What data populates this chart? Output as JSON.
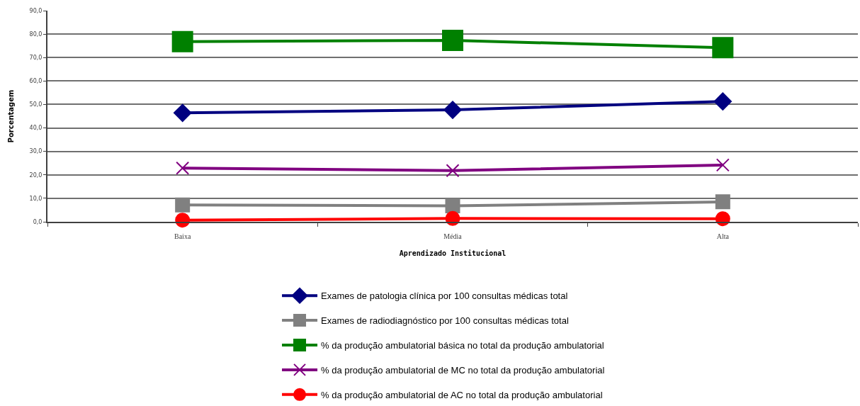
{
  "chart_data": {
    "type": "line",
    "xlabel": "Aprendizado Institucional",
    "ylabel": "Porcentagem",
    "categories": [
      "Baixa",
      "Média",
      "Alta"
    ],
    "series": [
      {
        "name": "Exames de patologia clínica por 100 consultas médicas total",
        "color": "#000080",
        "marker": "diamond",
        "values": [
          46.4,
          47.7,
          51.3
        ]
      },
      {
        "name": "Exames de radiodiagnóstico por 100 consultas médicas total",
        "color": "#808080",
        "marker": "square",
        "values": [
          7.2,
          6.8,
          8.5
        ]
      },
      {
        "name": "% da produção ambulatorial básica no total da produção ambulatorial",
        "color": "#008000",
        "marker": "square",
        "values": [
          76.8,
          77.3,
          74.2
        ]
      },
      {
        "name": "% da produção ambulatorial de MC no total da produção ambulatorial",
        "color": "#800080",
        "marker": "cross",
        "values": [
          22.9,
          21.8,
          24.2
        ]
      },
      {
        "name": "% da produção ambulatorial de AC no total da produção ambulatorial",
        "color": "#ff0000",
        "marker": "circle",
        "values": [
          0.7,
          1.4,
          1.3
        ]
      }
    ],
    "ylim": [
      0,
      90
    ],
    "yticks": [
      {
        "value": 0,
        "label": "0,0"
      },
      {
        "value": 10,
        "label": "10,0"
      },
      {
        "value": 20,
        "label": "20,0"
      },
      {
        "value": 30,
        "label": "30,0"
      },
      {
        "value": 40,
        "label": "40,0"
      },
      {
        "value": 50,
        "label": "50,0"
      },
      {
        "value": 60,
        "label": "60,0"
      },
      {
        "value": 70,
        "label": "70,0"
      },
      {
        "value": 80,
        "label": "80,0"
      },
      {
        "value": 90,
        "label": "90,0"
      }
    ],
    "grid": "y",
    "legend": "bottom",
    "line_style": "solid"
  }
}
